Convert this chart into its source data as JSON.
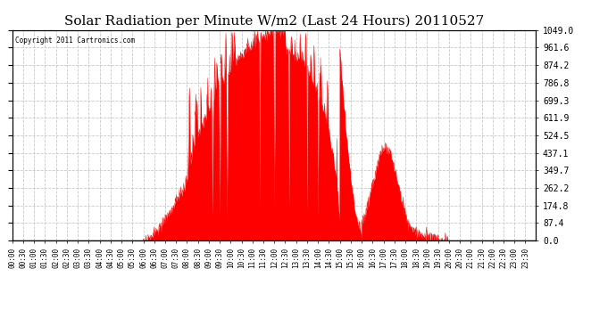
{
  "title": "Solar Radiation per Minute W/m2 (Last 24 Hours) 20110527",
  "copyright_text": "Copyright 2011 Cartronics.com",
  "fill_color": "#FF0000",
  "line_color": "#FF0000",
  "dashed_line_color": "#FF0000",
  "background_color": "#FFFFFF",
  "grid_color": "#C8C8C8",
  "title_fontsize": 11,
  "ylabel_right_values": [
    0.0,
    87.4,
    174.8,
    262.2,
    349.7,
    437.1,
    524.5,
    611.9,
    699.3,
    786.8,
    874.2,
    961.6,
    1049.0
  ],
  "ymax": 1049.0,
  "ymin": 0.0,
  "num_minutes": 1440,
  "sunrise_minute": 335,
  "sunset_minute": 1205,
  "peak_minute": 745
}
